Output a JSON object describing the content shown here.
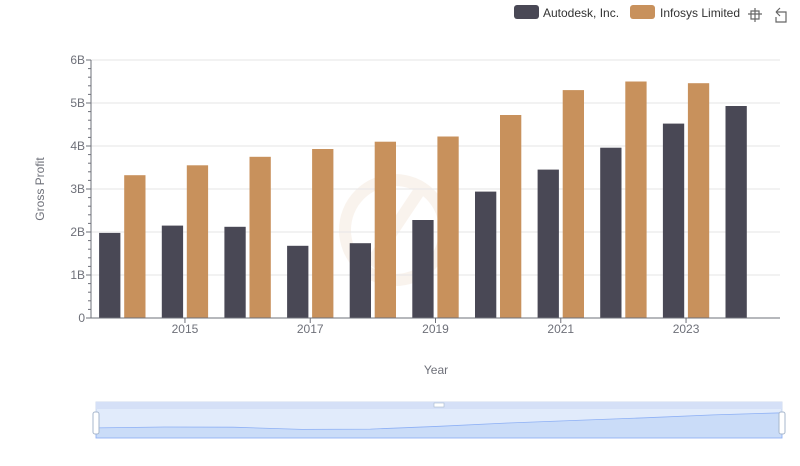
{
  "chart_data": {
    "type": "bar",
    "categories": [
      "2014",
      "2015",
      "2016",
      "2017",
      "2018",
      "2019",
      "2020",
      "2021",
      "2022",
      "2023",
      "2024"
    ],
    "x_tick_labels": [
      "2015",
      "2017",
      "2019",
      "2021",
      "2023"
    ],
    "series": [
      {
        "name": "Autodesk, Inc.",
        "color": "#494855",
        "values": [
          1.98,
          2.15,
          2.12,
          1.68,
          1.74,
          2.28,
          2.94,
          3.45,
          3.96,
          4.52,
          4.93
        ]
      },
      {
        "name": "Infosys Limited",
        "color": "#c8915c",
        "values": [
          3.32,
          3.55,
          3.75,
          3.93,
          4.1,
          4.22,
          4.72,
          5.3,
          5.5,
          5.46,
          null
        ]
      }
    ],
    "xlabel": "Year",
    "ylabel": "Gross Profit",
    "ylim": [
      0,
      6
    ],
    "y_ticks": [
      {
        "value": 0,
        "label": "0"
      },
      {
        "value": 1,
        "label": "1B"
      },
      {
        "value": 2,
        "label": "2B"
      },
      {
        "value": 3,
        "label": "3B"
      },
      {
        "value": 4,
        "label": "4B"
      },
      {
        "value": 5,
        "label": "5B"
      },
      {
        "value": 6,
        "label": "6B"
      }
    ],
    "grid": true,
    "legend_position": "top-right"
  },
  "toolbar": {
    "zoom_icon": "zoom-icon",
    "restore_icon": "restore-icon"
  },
  "data_zoom": {
    "range_start": 0,
    "range_end": 1
  }
}
